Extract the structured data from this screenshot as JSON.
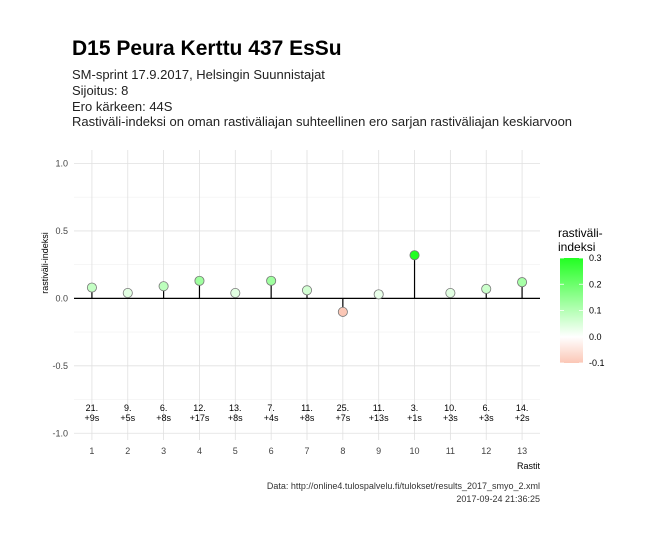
{
  "header": {
    "title": "D15 Peura Kerttu 437 EsSu",
    "subtitle_lines": [
      "SM-sprint 17.9.2017, Helsingin Suunnistajat",
      "Sijoitus: 8",
      "Ero kärkeen: 44S",
      "Rastiväli-indeksi on oman rastiväliajan suhteellinen ero sarjan rastiväliajan keskiarvoon"
    ]
  },
  "caption": {
    "source": "Data: http://online4.tulospalvelu.fi/tulokset/results_2017_smyo_2.xml",
    "timestamp": "2017-09-24 21:36:25"
  },
  "colors": {
    "negative": "#fbc7b6",
    "zero": "#ffffff",
    "positive": "#22ff22",
    "zero_line": "#000000",
    "stem": "#000000"
  },
  "chart_data": {
    "type": "scatter",
    "subtype": "lollipop",
    "xlabel": "Rastit",
    "ylabel": "rastiväli-indeksi",
    "x": [
      1,
      2,
      3,
      4,
      5,
      6,
      7,
      8,
      9,
      10,
      11,
      12,
      13
    ],
    "values": [
      0.08,
      0.04,
      0.09,
      0.13,
      0.04,
      0.13,
      0.06,
      -0.1,
      0.03,
      0.32,
      0.04,
      0.07,
      0.12
    ],
    "annotations": [
      [
        "21.",
        "+9s"
      ],
      [
        "9.",
        "+5s"
      ],
      [
        "6.",
        "+8s"
      ],
      [
        "12.",
        "+17s"
      ],
      [
        "13.",
        "+8s"
      ],
      [
        "7.",
        "+4s"
      ],
      [
        "11.",
        "+8s"
      ],
      [
        "25.",
        "+7s"
      ],
      [
        "11.",
        "+13s"
      ],
      [
        "3.",
        "+1s"
      ],
      [
        "10.",
        "+3s"
      ],
      [
        "6.",
        "+3s"
      ],
      [
        "14.",
        "+2s"
      ]
    ],
    "annotation_y": -0.9,
    "xlim": [
      0.5,
      13.5
    ],
    "ylim": [
      -1.05,
      1.1
    ],
    "y_ticks": [
      -1.0,
      -0.5,
      0.0,
      0.5,
      1.0
    ],
    "y_tick_labels": [
      "-1.0",
      "-0.5",
      "0.0",
      "0.5",
      "1.0"
    ],
    "x_ticks": [
      1,
      2,
      3,
      4,
      5,
      6,
      7,
      8,
      9,
      10,
      11,
      12,
      13
    ],
    "x_tick_labels": [
      "1",
      "2",
      "3",
      "4",
      "5",
      "6",
      "7",
      "8",
      "9",
      "10",
      "11",
      "12",
      "13"
    ],
    "grid": true,
    "legend": {
      "title_lines": [
        "rastiväli-",
        "indeksi"
      ],
      "placement": "right",
      "range": [
        -0.1,
        0.3
      ],
      "ticks": [
        0.3,
        0.2,
        0.1,
        0.0,
        -0.1
      ],
      "tick_labels": [
        "0.3",
        "0.2",
        "0.1",
        "0.0",
        "-0.1"
      ]
    }
  }
}
